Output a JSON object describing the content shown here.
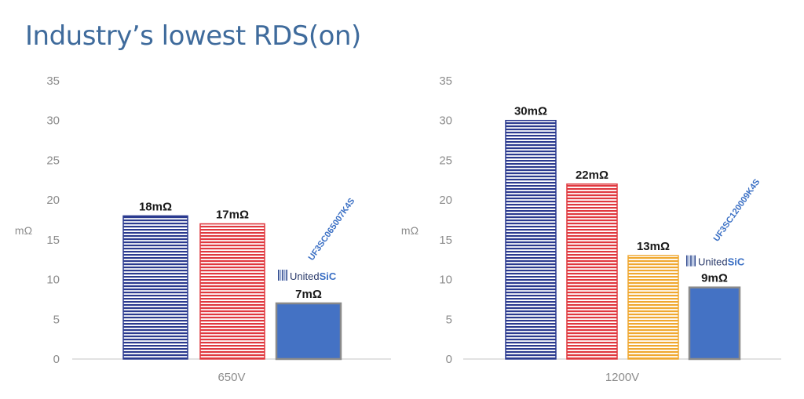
{
  "title": "Industry’s lowest RDS(on)",
  "chart_data": [
    {
      "type": "bar",
      "category": "650V",
      "ylabel": "mΩ",
      "ylim": [
        0,
        35
      ],
      "yticks": [
        0,
        5,
        10,
        15,
        20,
        25,
        30,
        35
      ],
      "grid": false,
      "values": [
        18,
        17,
        7
      ],
      "labels": [
        "18mΩ",
        "17mΩ",
        "7mΩ"
      ],
      "colors": [
        "#2b3a8f",
        "#e0383f",
        "#4472c4"
      ],
      "patterns": [
        "stripes",
        "stripes",
        "solid"
      ],
      "highlight": {
        "index": 2,
        "part_number": "UF3SC065007K4S",
        "brand_a": "United",
        "brand_b": "SiC"
      }
    },
    {
      "type": "bar",
      "category": "1200V",
      "ylabel": "mΩ",
      "ylim": [
        0,
        35
      ],
      "yticks": [
        0,
        5,
        10,
        15,
        20,
        25,
        30,
        35
      ],
      "grid": false,
      "values": [
        30,
        22,
        13,
        9
      ],
      "labels": [
        "30mΩ",
        "22mΩ",
        "13mΩ",
        "9mΩ"
      ],
      "colors": [
        "#2b3a8f",
        "#e0383f",
        "#f0a830",
        "#4472c4"
      ],
      "patterns": [
        "stripes",
        "stripes",
        "stripes",
        "solid"
      ],
      "highlight": {
        "index": 3,
        "part_number": "UF3SC120009K4S",
        "brand_a": "United",
        "brand_b": "SiC"
      }
    }
  ]
}
